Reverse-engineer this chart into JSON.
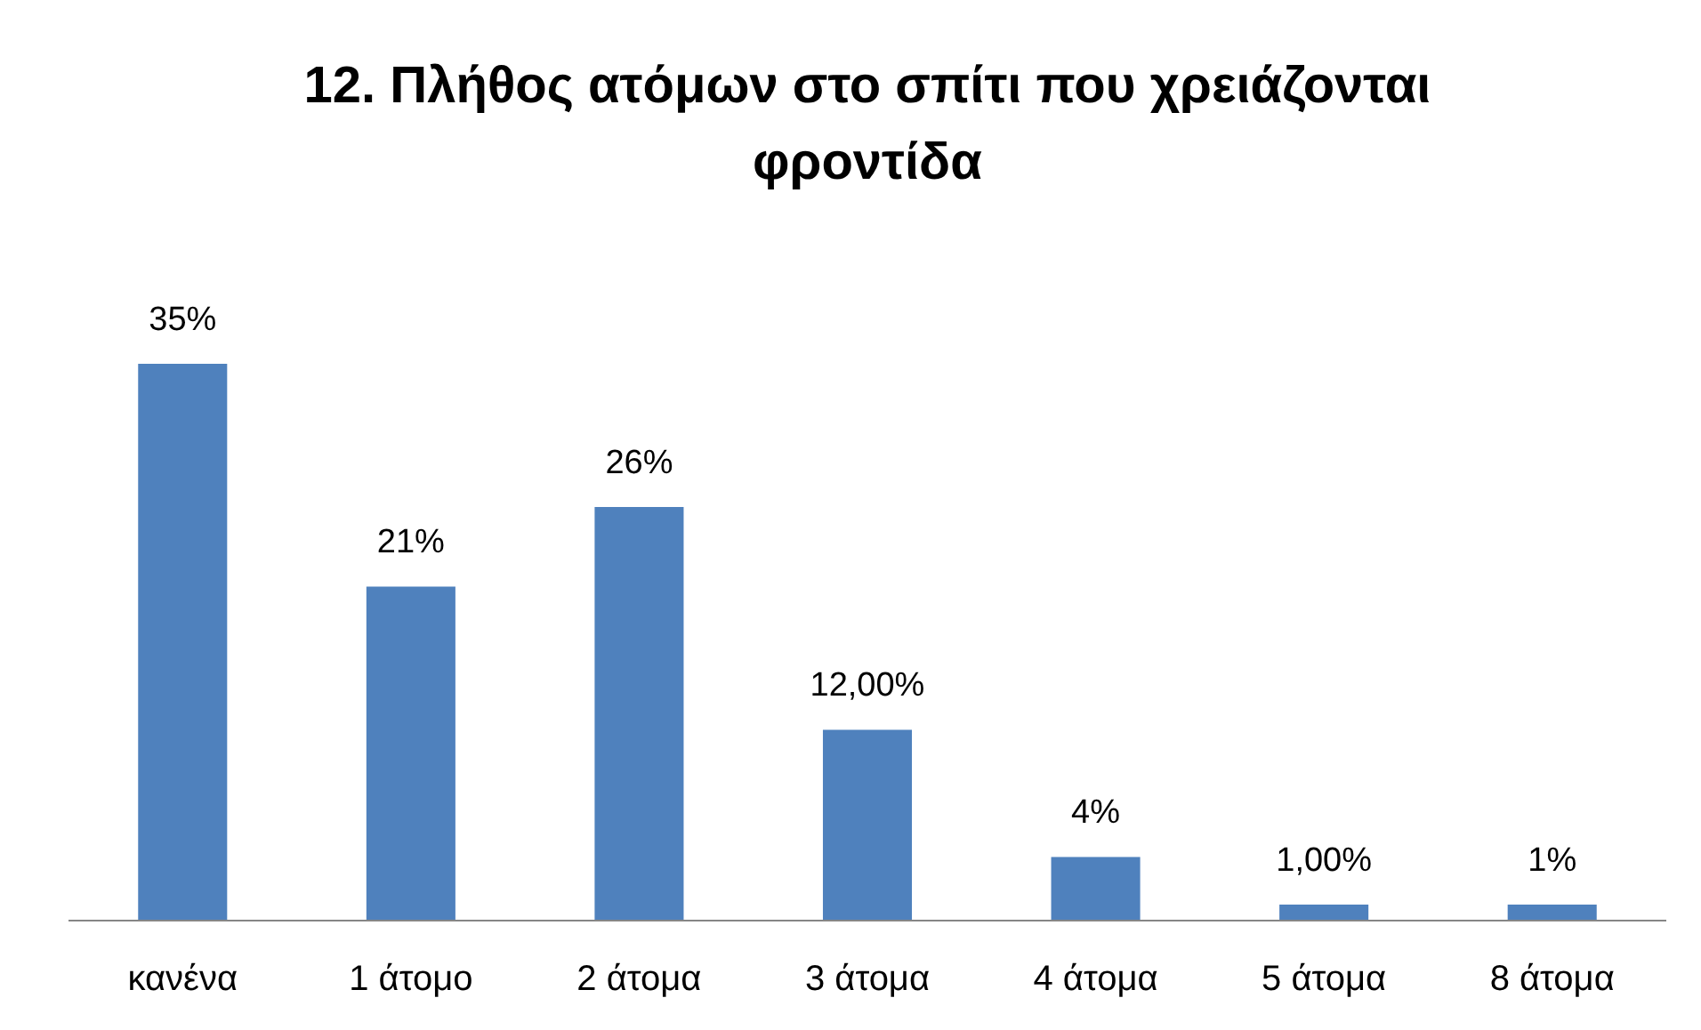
{
  "chart_data": {
    "type": "bar",
    "title": "12. Πλήθος ατόμων στο σπίτι που χρειάζονται φροντίδα",
    "categories": [
      "κανένα",
      "1 άτομο",
      "2 άτομα",
      "3 άτομα",
      "4 άτομα",
      "5 άτομα",
      "8 άτομα"
    ],
    "values": [
      35,
      21,
      26,
      12,
      4,
      1,
      1
    ],
    "value_labels": [
      "35%",
      "21%",
      "26%",
      "12,00%",
      "4%",
      "1,00%",
      "1%"
    ],
    "color": "#4f81bd",
    "grid": false
  }
}
